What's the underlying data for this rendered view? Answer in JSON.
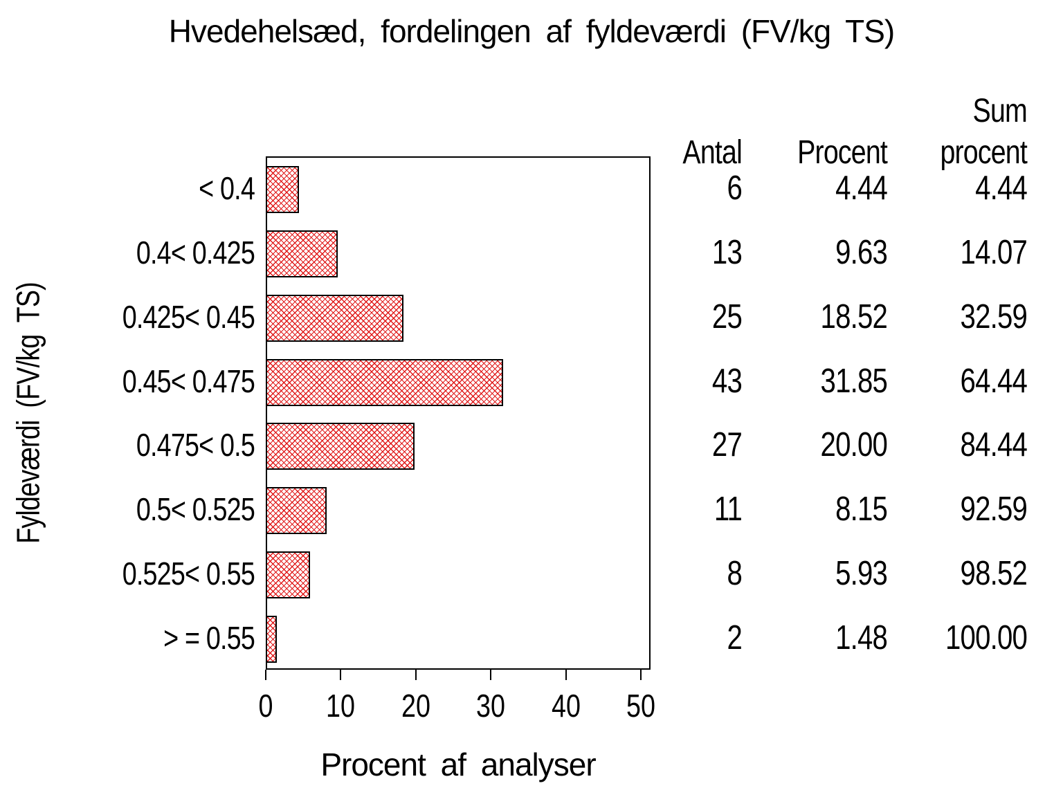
{
  "title": "Hvedehelsæd, fordelingen af fyldeværdi (FV/kg TS)",
  "chart_data": {
    "type": "bar",
    "orientation": "horizontal",
    "title": "Hvedehelsæd, fordelingen af fyldeværdi (FV/kg TS)",
    "xlabel": "Procent af analyser",
    "ylabel": "Fyldeværdi  (FV/kg TS)",
    "categories": [
      "< 0.4",
      "0.4< 0.425",
      "0.425< 0.45",
      "0.45< 0.475",
      "0.475< 0.5",
      "0.5< 0.525",
      "0.525< 0.55",
      "> = 0.55"
    ],
    "values": [
      4.44,
      9.63,
      18.52,
      31.85,
      20.0,
      8.15,
      5.93,
      1.48
    ],
    "xticks": [
      0,
      10,
      20,
      30,
      40,
      50
    ],
    "xtick_labels": [
      "0",
      "10",
      "20",
      "30",
      "40",
      "50"
    ],
    "xlim": [
      0,
      51.3
    ],
    "grid": false,
    "bar_fill": "red-crosshatch",
    "hatch_color": "#e01818",
    "bar_border_color": "#000000",
    "frame_color": "#000000"
  },
  "table": {
    "header_line1": [
      "",
      "",
      "Sum"
    ],
    "header_line2": [
      "Antal",
      "Procent",
      "procent"
    ],
    "columns": [
      "Antal",
      "Procent",
      "Sum procent"
    ],
    "rows": [
      [
        "6",
        "4.44",
        "4.44"
      ],
      [
        "13",
        "9.63",
        "14.07"
      ],
      [
        "25",
        "18.52",
        "32.59"
      ],
      [
        "43",
        "31.85",
        "64.44"
      ],
      [
        "27",
        "20.00",
        "84.44"
      ],
      [
        "11",
        "8.15",
        "92.59"
      ],
      [
        "8",
        "5.93",
        "98.52"
      ],
      [
        "2",
        "1.48",
        "100.00"
      ]
    ]
  }
}
